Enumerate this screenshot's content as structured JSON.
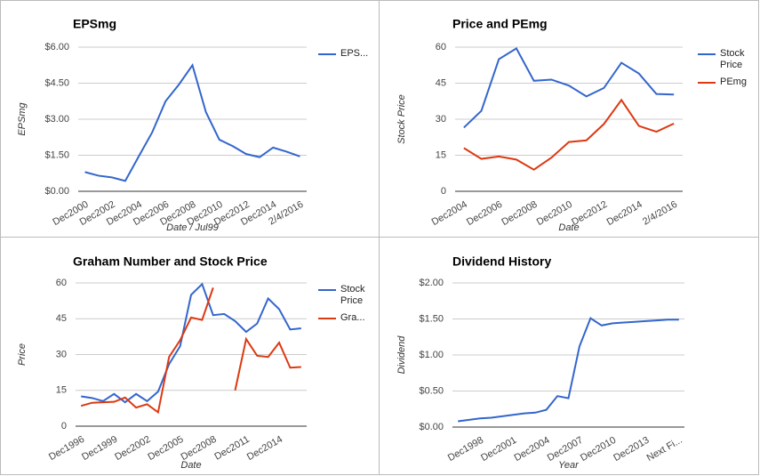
{
  "chart_data": [
    {
      "type": "line",
      "title": "EPSmg",
      "y_label": "EPSmg",
      "x_label": "Date / Jul99",
      "categories": [
        "Dec2000",
        null,
        "Dec2002",
        null,
        "Dec2004",
        null,
        "Dec2006",
        null,
        "Dec2008",
        null,
        "Dec2010",
        null,
        "Dec2012",
        null,
        "Dec2014",
        null,
        "2/4/2016"
      ],
      "series": [
        {
          "name": "EPS...",
          "color": "#3366cc",
          "values": [
            0.8,
            0.65,
            0.58,
            0.43,
            1.45,
            2.45,
            3.75,
            4.45,
            5.25,
            3.3,
            2.15,
            1.88,
            1.55,
            1.42,
            1.82,
            1.65,
            1.45
          ]
        }
      ],
      "ylim": [
        0,
        6
      ],
      "yticks": [
        {
          "value": 0,
          "label": "$0.00"
        },
        {
          "value": 1.5,
          "label": "$1.50"
        },
        {
          "value": 3,
          "label": "$3.00"
        },
        {
          "value": 4.5,
          "label": "$4.50"
        },
        {
          "value": 6,
          "label": "$6.00"
        }
      ],
      "grid": true,
      "legend": "right"
    },
    {
      "type": "line",
      "title": "Price and PEmg",
      "y_label": "Stock Price",
      "x_label": "Date",
      "categories": [
        "Dec2004",
        null,
        "Dec2006",
        null,
        "Dec2008",
        null,
        "Dec2010",
        null,
        "Dec2012",
        null,
        "Dec2014",
        null,
        "2/4/2016"
      ],
      "series": [
        {
          "name": "Stock Price",
          "color": "#3366cc",
          "values": [
            26.5,
            33.5,
            55,
            59.5,
            46,
            46.5,
            44,
            39.5,
            43,
            53.5,
            49,
            40.5,
            40.3
          ]
        },
        {
          "name": "PEmg",
          "color": "#dc3912",
          "values": [
            18,
            13.5,
            14.5,
            13.2,
            9,
            14,
            20.5,
            21.2,
            28,
            38,
            27.2,
            24.8,
            28.2
          ]
        }
      ],
      "ylim": [
        0,
        60
      ],
      "yticks": [
        0,
        15,
        30,
        45,
        60
      ],
      "grid": true,
      "legend": "right"
    },
    {
      "type": "line",
      "title": "Graham Number and Stock Price",
      "y_label": "Price",
      "x_label": "Date",
      "categories": [
        "Dec1996",
        null,
        null,
        "Dec1999",
        null,
        null,
        "Dec2002",
        null,
        null,
        "Dec2005",
        null,
        null,
        "Dec2008",
        null,
        null,
        "Dec2011",
        null,
        null,
        "Dec2014",
        null,
        null
      ],
      "series": [
        {
          "name": "Stock Price",
          "color": "#3366cc",
          "values": [
            12.5,
            11.8,
            10.5,
            13.5,
            10,
            13.5,
            10.5,
            14.5,
            26,
            33.5,
            55,
            59.5,
            46.5,
            47,
            44,
            39.5,
            43,
            53.5,
            49,
            40.5,
            41
          ]
        },
        {
          "name": "Gra...",
          "color": "#dc3912",
          "values": [
            8.5,
            9.8,
            10,
            10.2,
            12,
            7.8,
            9.2,
            5.8,
            29,
            36,
            45.5,
            44.5,
            58,
            null,
            15,
            36.5,
            29.5,
            29,
            35,
            24.5,
            24.8
          ]
        }
      ],
      "ylim": [
        0,
        60
      ],
      "yticks": [
        0,
        15,
        30,
        45,
        60
      ],
      "grid": true,
      "legend": "right"
    },
    {
      "type": "line",
      "title": "Dividend History",
      "y_label": "Dividend",
      "x_label": "Year",
      "categories": [
        null,
        null,
        "Dec1998",
        null,
        null,
        "Dec2001",
        null,
        null,
        "Dec2004",
        null,
        null,
        "Dec2007",
        null,
        null,
        "Dec2010",
        null,
        null,
        "Dec2013",
        null,
        null,
        "Next Fi..."
      ],
      "series": [
        {
          "color": "#3366cc",
          "values": [
            0.08,
            0.1,
            0.12,
            0.13,
            0.15,
            0.17,
            0.19,
            0.2,
            0.24,
            0.43,
            0.4,
            1.12,
            1.51,
            1.41,
            1.44,
            1.45,
            1.46,
            1.47,
            1.48,
            1.49,
            1.49
          ]
        }
      ],
      "ylim": [
        0,
        2
      ],
      "yticks": [
        {
          "value": 0,
          "label": "$0.00"
        },
        {
          "value": 0.5,
          "label": "$0.50"
        },
        {
          "value": 1,
          "label": "$1.00"
        },
        {
          "value": 1.5,
          "label": "$1.50"
        },
        {
          "value": 2,
          "label": "$2.00"
        }
      ],
      "grid": true
    }
  ]
}
